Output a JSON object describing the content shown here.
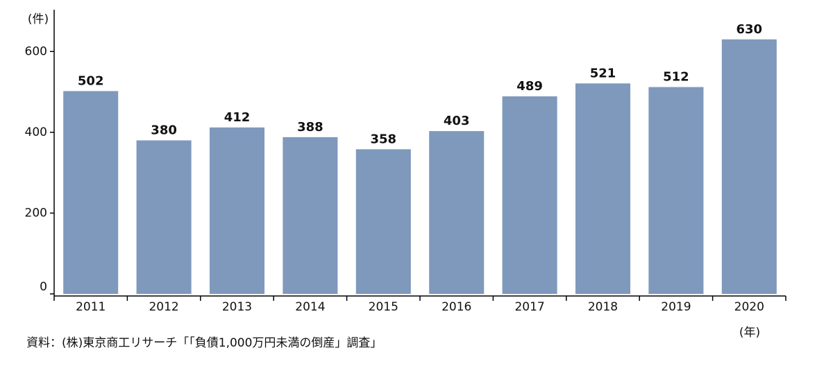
{
  "chart_data": {
    "type": "bar",
    "y_label": "(件)",
    "x_label": "(年)",
    "source": "資料：(株)東京商工リサーチ「「負債1,000万円未満の倒産」調査」",
    "categories": [
      "2011",
      "2012",
      "2013",
      "2014",
      "2015",
      "2016",
      "2017",
      "2018",
      "2019",
      "2020"
    ],
    "values": [
      502,
      380,
      412,
      388,
      358,
      403,
      489,
      521,
      512,
      630
    ],
    "color": "#7f99bd",
    "ylim": [
      0,
      700
    ],
    "yticks": [
      0,
      200,
      400,
      600
    ],
    "grid": false
  }
}
